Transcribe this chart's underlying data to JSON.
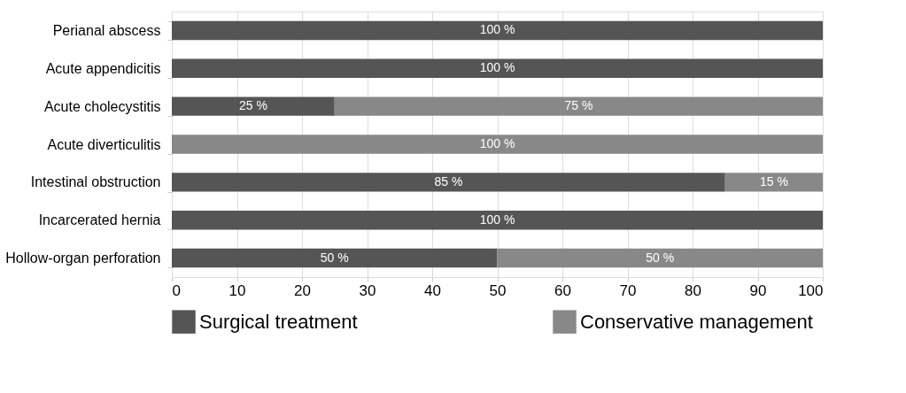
{
  "chart_data": {
    "type": "bar",
    "orientation": "horizontal",
    "stacked": true,
    "categories": [
      "Perianal abscess",
      "Acute appendicitis",
      "Acute cholecystitis",
      "Acute diverticulitis",
      "Intestinal obstruction",
      "Incarcerated hernia",
      "Hollow-organ perforation"
    ],
    "series": [
      {
        "name": "Surgical treatment",
        "color": "#555555",
        "values": [
          100,
          100,
          25,
          0,
          85,
          100,
          50
        ],
        "value_labels": [
          "100 %",
          "100 %",
          "25 %",
          null,
          "85 %",
          "100 %",
          "50 %"
        ]
      },
      {
        "name": "Conservative management",
        "color": "#888888",
        "values": [
          0,
          0,
          75,
          100,
          15,
          0,
          50
        ],
        "value_labels": [
          null,
          null,
          "75 %",
          "100 %",
          "15 %",
          null,
          "50 %"
        ]
      }
    ],
    "xlim": [
      0,
      100
    ],
    "xticks": [
      0,
      10,
      20,
      30,
      40,
      50,
      60,
      70,
      80,
      90,
      100
    ],
    "grid": "x",
    "legend": "bottom"
  }
}
